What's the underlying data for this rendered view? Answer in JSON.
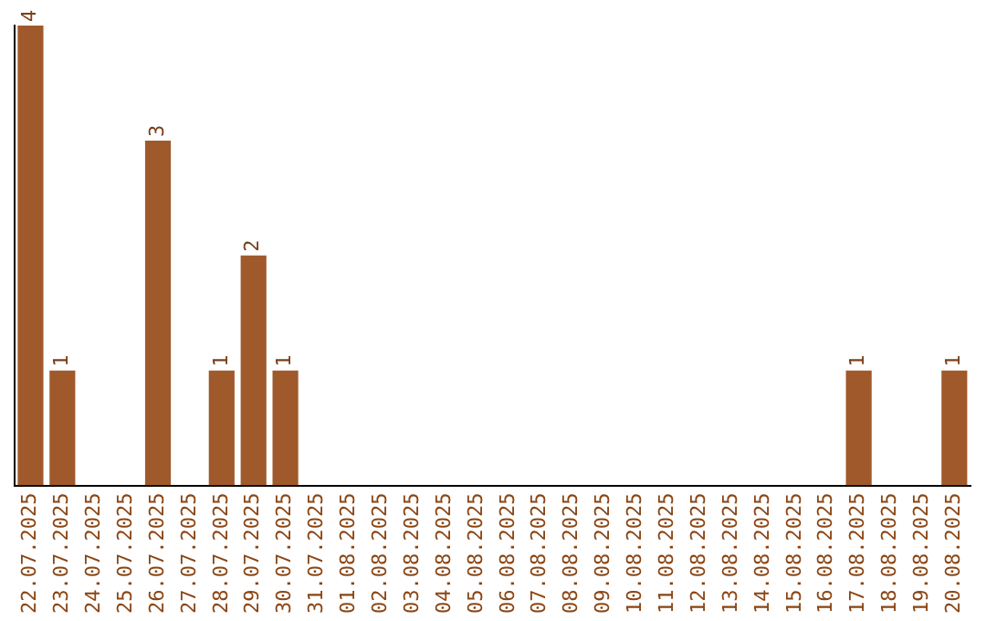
{
  "chart_data": {
    "type": "bar",
    "categories": [
      "22.07.2025",
      "23.07.2025",
      "24.07.2025",
      "25.07.2025",
      "26.07.2025",
      "27.07.2025",
      "28.07.2025",
      "29.07.2025",
      "30.07.2025",
      "31.07.2025",
      "01.08.2025",
      "02.08.2025",
      "03.08.2025",
      "04.08.2025",
      "05.08.2025",
      "06.08.2025",
      "07.08.2025",
      "08.08.2025",
      "09.08.2025",
      "10.08.2025",
      "11.08.2025",
      "12.08.2025",
      "13.08.2025",
      "14.08.2025",
      "15.08.2025",
      "16.08.2025",
      "17.08.2025",
      "18.08.2025",
      "19.08.2025",
      "20.08.2025"
    ],
    "values": [
      4,
      1,
      0,
      0,
      3,
      0,
      1,
      2,
      1,
      0,
      0,
      0,
      0,
      0,
      0,
      0,
      0,
      0,
      0,
      0,
      0,
      0,
      0,
      0,
      0,
      0,
      1,
      0,
      0,
      1
    ],
    "value_labels": [
      "4",
      "1",
      null,
      null,
      "3",
      null,
      "1",
      "2",
      "1",
      null,
      null,
      null,
      null,
      null,
      null,
      null,
      null,
      null,
      null,
      null,
      null,
      null,
      null,
      null,
      null,
      null,
      "1",
      null,
      null,
      "1"
    ],
    "color": "#a0592b",
    "grid": false,
    "legend": false,
    "tick_labels": "x"
  }
}
